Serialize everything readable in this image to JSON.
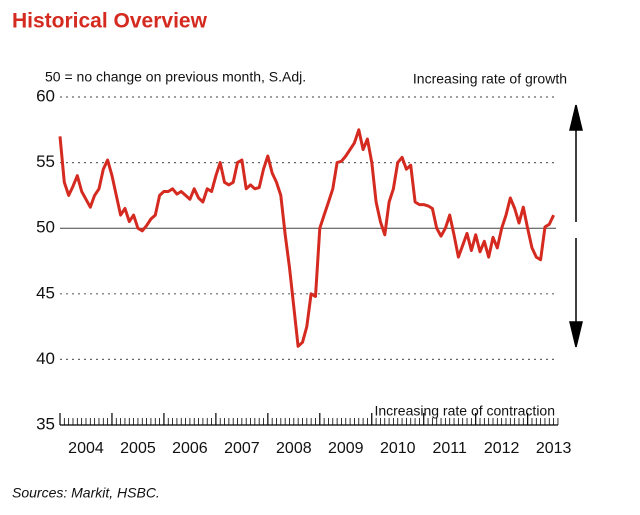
{
  "chart_data": {
    "type": "line",
    "title": "Historical Overview",
    "subtitle": "50 = no change on previous month, S.Adj.",
    "annotation_top": "Increasing rate of growth",
    "annotation_bottom": "Increasing rate of contraction",
    "source": "Sources: Markit, HSBC.",
    "x_labels": [
      "2004",
      "2005",
      "2006",
      "2007",
      "2008",
      "2009",
      "2010",
      "2011",
      "2012",
      "2013"
    ],
    "color": "#d42a20",
    "values": [
      57,
      53.5,
      52.5,
      53.2,
      54,
      52.8,
      52.2,
      51.6,
      52.5,
      53,
      54.5,
      55.2,
      54,
      52.5,
      51,
      51.5,
      50.5,
      51,
      50,
      49.8,
      50.2,
      50.7,
      51,
      52.5,
      52.8,
      52.8,
      53,
      52.6,
      52.8,
      52.5,
      52.2,
      53,
      52.3,
      52,
      53,
      52.8,
      54,
      55,
      53.5,
      53.3,
      53.5,
      55,
      55.2,
      53,
      53.3,
      53,
      53.1,
      54.5,
      55.5,
      54.2,
      53.5,
      52.5,
      49.5,
      47,
      44,
      41,
      41.3,
      42.5,
      45,
      44.8,
      50,
      51,
      52,
      53,
      55,
      55.1,
      55.5,
      56,
      56.5,
      57.5,
      56,
      56.8,
      55,
      52,
      50.5,
      49.5,
      52,
      53,
      55,
      55.4,
      54.5,
      54.8,
      52,
      51.8,
      51.8,
      51.7,
      51.5,
      50,
      49.4,
      50,
      51,
      49.5,
      47.8,
      48.7,
      49.6,
      48.3,
      49.5,
      48.2,
      49,
      47.8,
      49.3,
      48.5,
      50,
      51,
      52.3,
      51.5,
      50.4,
      51.6,
      50,
      48.5,
      47.8,
      47.6,
      50.1,
      50.3,
      51
    ],
    "ylim": [
      35,
      60
    ],
    "yticks": [
      35,
      40,
      45,
      50,
      55,
      60
    ],
    "reference_line": 50,
    "grid": true
  }
}
